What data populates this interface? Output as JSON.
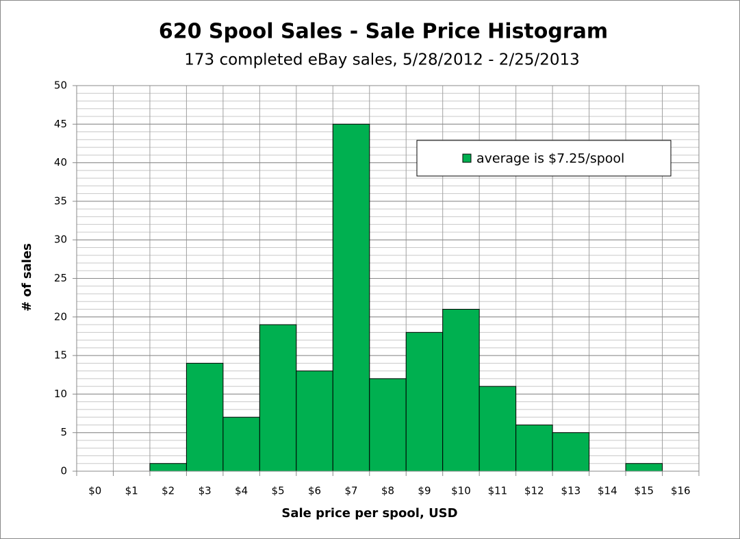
{
  "chart_data": {
    "type": "bar",
    "title": "620 Spool Sales - Sale Price Histogram",
    "subtitle": "173 completed eBay sales, 5/28/2012 - 2/25/2013",
    "x_label": "Sale price per spool, USD",
    "y_label": "# of sales",
    "categories": [
      "$0",
      "$1",
      "$2",
      "$3",
      "$4",
      "$5",
      "$6",
      "$7",
      "$8",
      "$9",
      "$10",
      "$11",
      "$12",
      "$13",
      "$14",
      "$15",
      "$16"
    ],
    "series": [
      {
        "name": "average is $7.25/spool",
        "color": "#00b050",
        "values": [
          0,
          0,
          1,
          14,
          7,
          19,
          13,
          45,
          12,
          18,
          21,
          11,
          6,
          5,
          0,
          1,
          0
        ]
      }
    ],
    "ylim": [
      0,
      50
    ],
    "yticks": [
      0,
      5,
      10,
      15,
      20,
      25,
      30,
      35,
      40,
      45,
      50
    ],
    "grid": true,
    "minor_grid": true,
    "legend": "upper right"
  }
}
